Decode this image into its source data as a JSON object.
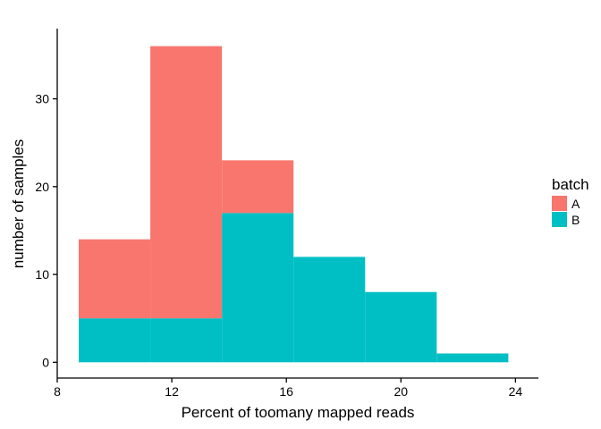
{
  "chart_data": {
    "type": "bar",
    "stacked": true,
    "xlabel": "Percent of toomany mapped reads",
    "ylabel": "number of samples",
    "xlim": [
      8,
      24.8
    ],
    "ylim": [
      -1.8,
      38
    ],
    "x_ticks": [
      8,
      12,
      16,
      20,
      24
    ],
    "y_ticks": [
      0,
      10,
      20,
      30
    ],
    "bin_edges": [
      8.75,
      11.25,
      13.75,
      16.25,
      18.75,
      21.25,
      23.75
    ],
    "series": [
      {
        "name": "A",
        "color": "#F8766D",
        "values": [
          9,
          31,
          6,
          0,
          0,
          0
        ]
      },
      {
        "name": "B",
        "color": "#00BFC4",
        "values": [
          5,
          5,
          17,
          12,
          8,
          1
        ]
      }
    ],
    "legend": {
      "title": "batch",
      "position": "right",
      "items": [
        "A",
        "B"
      ]
    },
    "grid": false
  }
}
